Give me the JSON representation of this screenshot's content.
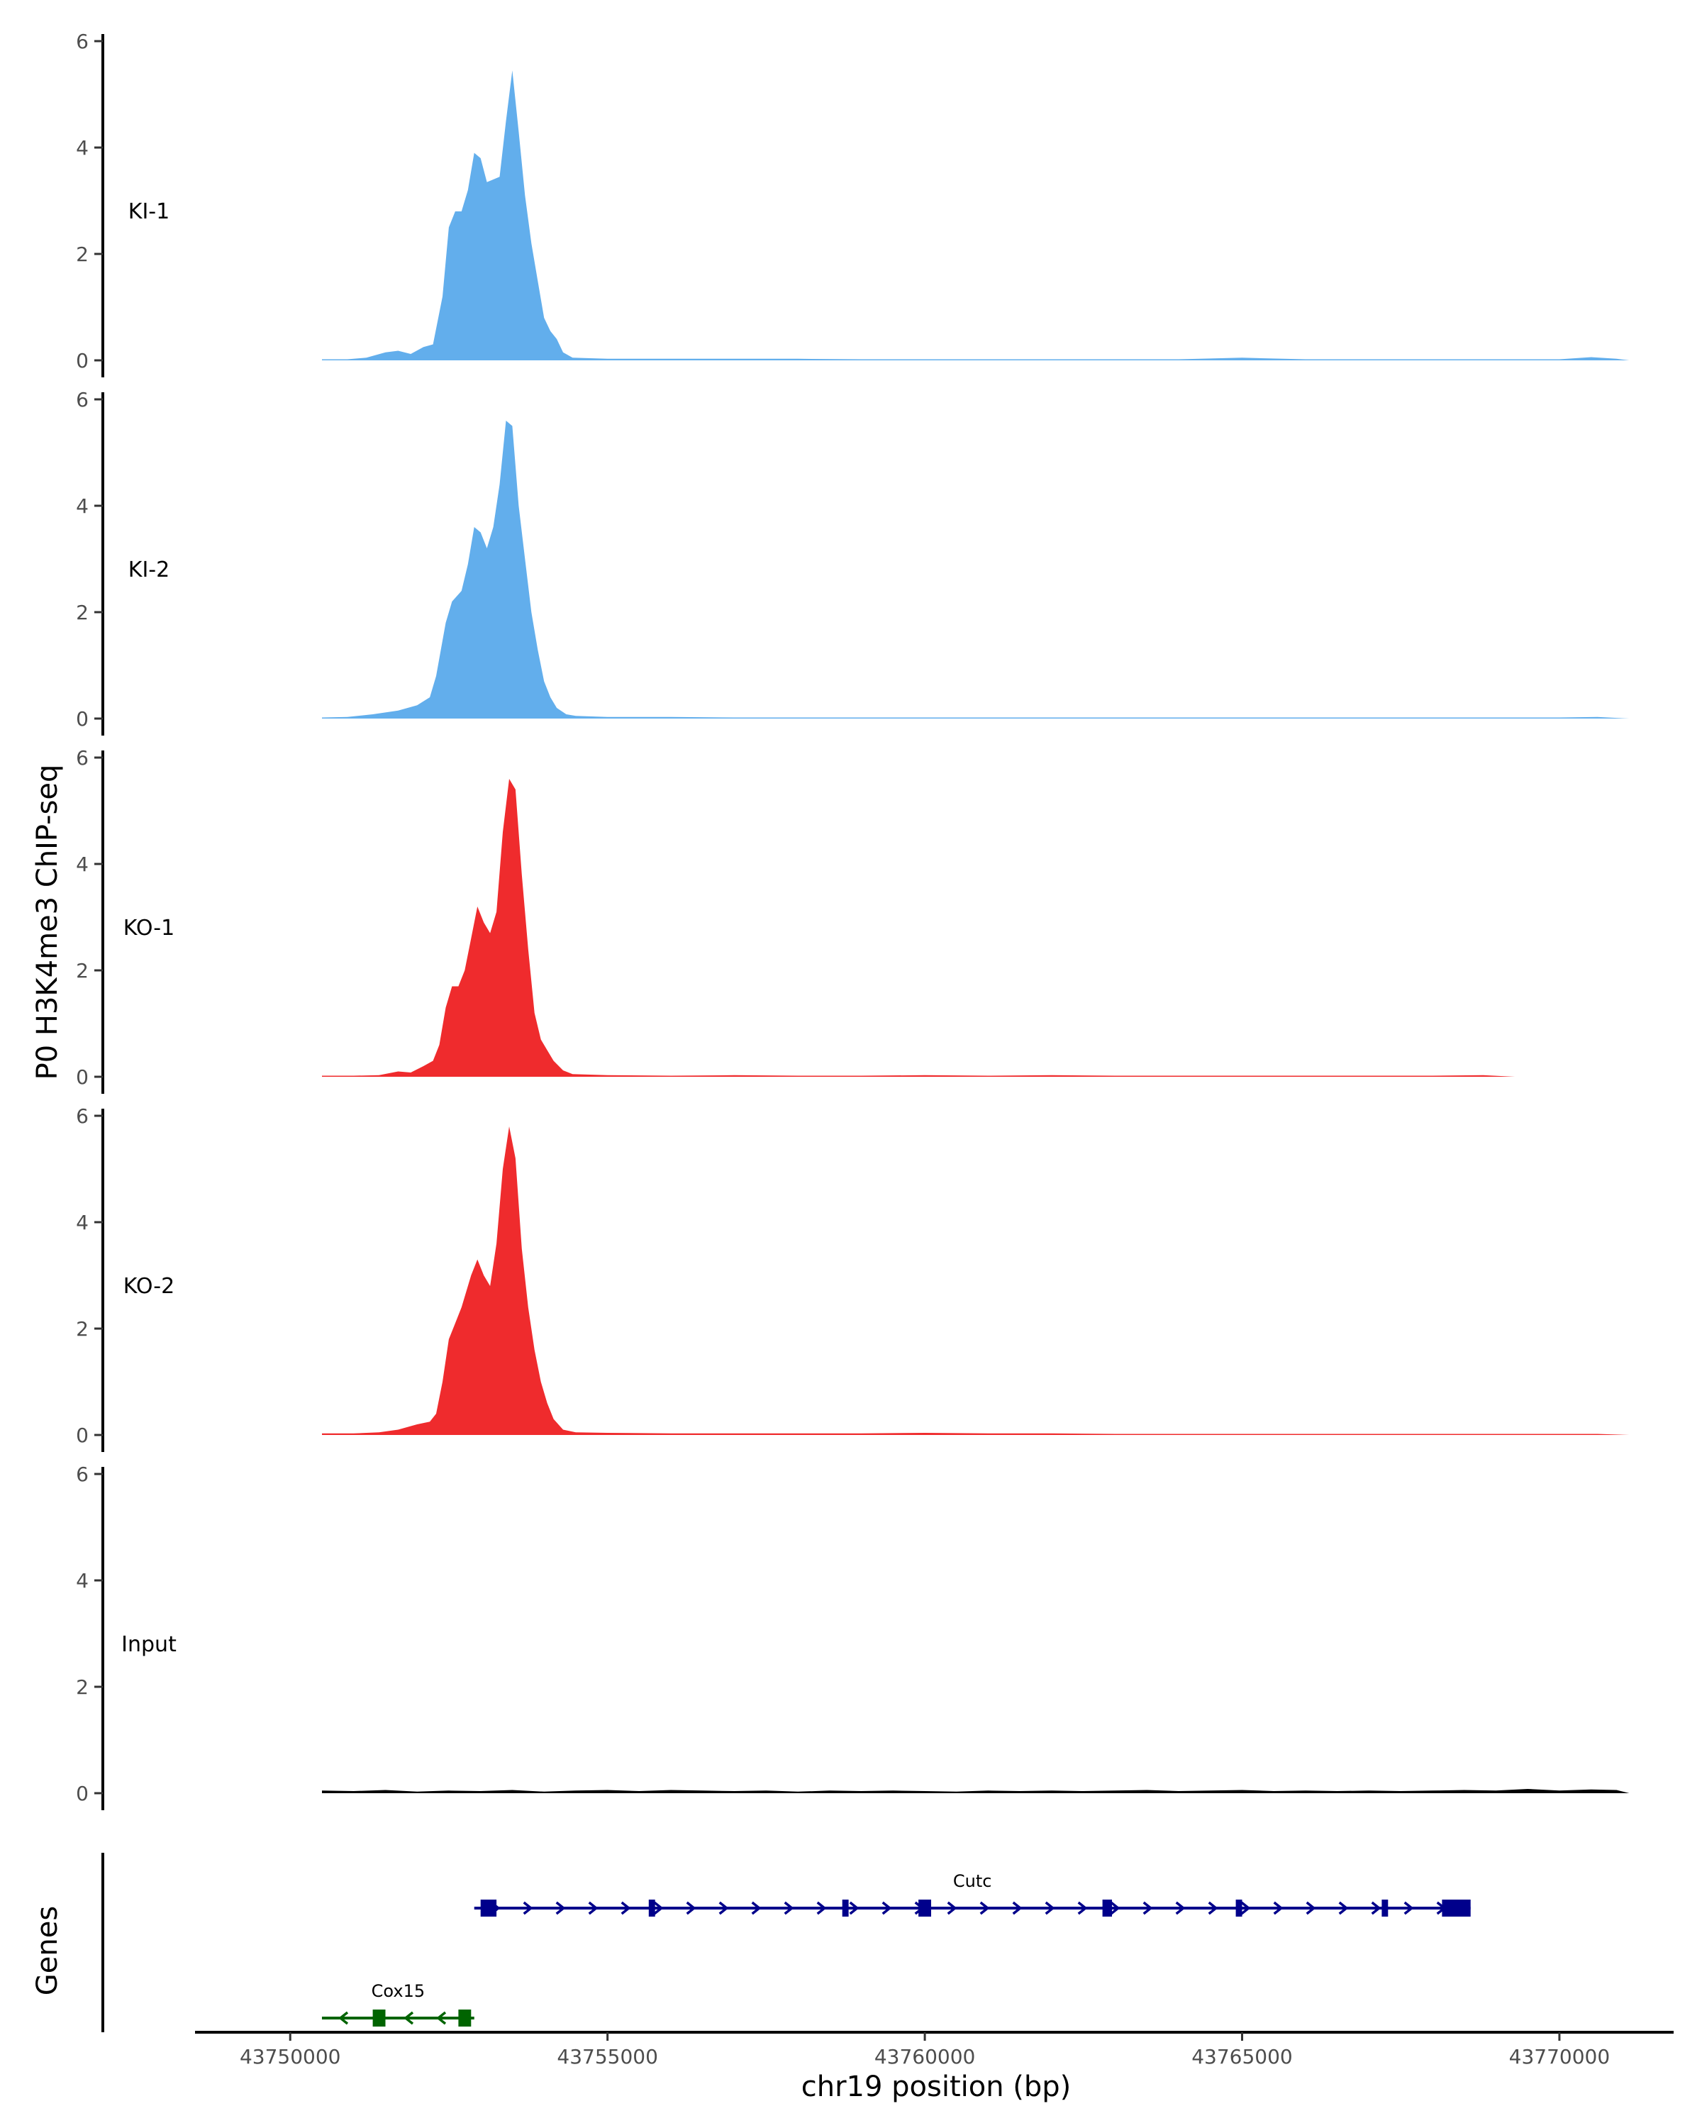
{
  "chart_data": {
    "type": "area",
    "title": "",
    "xlabel": "chr19 position (bp)",
    "ylabel": "P0 H3K4me3 ChIP-seq",
    "genes_axis_label": "Genes",
    "x_range": [
      43750000,
      43771000
    ],
    "xlim": [
      43748500,
      43771800
    ],
    "x_ticks": [
      43750000,
      43755000,
      43760000,
      43765000,
      43770000
    ],
    "x_tick_labels": [
      "43750000",
      "43755000",
      "43760000",
      "43765000",
      "43770000"
    ],
    "ylim": [
      0,
      6
    ],
    "y_ticks": [
      0,
      2,
      4,
      6
    ],
    "y_tick_labels": [
      "0",
      "2",
      "4",
      "6"
    ],
    "grid": false,
    "series": [
      {
        "name": "KI-1",
        "color": "#62aeec",
        "points": [
          [
            43750500,
            0.02
          ],
          [
            43750900,
            0.02
          ],
          [
            43751200,
            0.05
          ],
          [
            43751500,
            0.15
          ],
          [
            43751700,
            0.18
          ],
          [
            43751900,
            0.12
          ],
          [
            43752100,
            0.25
          ],
          [
            43752250,
            0.3
          ],
          [
            43752400,
            1.2
          ],
          [
            43752500,
            2.5
          ],
          [
            43752600,
            2.8
          ],
          [
            43752700,
            2.8
          ],
          [
            43752800,
            3.2
          ],
          [
            43752900,
            3.9
          ],
          [
            43753000,
            3.8
          ],
          [
            43753100,
            3.35
          ],
          [
            43753200,
            3.4
          ],
          [
            43753300,
            3.45
          ],
          [
            43753400,
            4.5
          ],
          [
            43753500,
            5.45
          ],
          [
            43753600,
            4.3
          ],
          [
            43753700,
            3.1
          ],
          [
            43753800,
            2.2
          ],
          [
            43753900,
            1.5
          ],
          [
            43754000,
            0.8
          ],
          [
            43754100,
            0.55
          ],
          [
            43754200,
            0.4
          ],
          [
            43754300,
            0.15
          ],
          [
            43754450,
            0.05
          ],
          [
            43755000,
            0.03
          ],
          [
            43756000,
            0.03
          ],
          [
            43757000,
            0.03
          ],
          [
            43758000,
            0.03
          ],
          [
            43759000,
            0.02
          ],
          [
            43760000,
            0.02
          ],
          [
            43761000,
            0.02
          ],
          [
            43762000,
            0.02
          ],
          [
            43763000,
            0.02
          ],
          [
            43764000,
            0.02
          ],
          [
            43765000,
            0.05
          ],
          [
            43766000,
            0.02
          ],
          [
            43767000,
            0.02
          ],
          [
            43768000,
            0.02
          ],
          [
            43769000,
            0.02
          ],
          [
            43770000,
            0.02
          ],
          [
            43770500,
            0.06
          ],
          [
            43770900,
            0.03
          ],
          [
            43771100,
            0.0
          ]
        ]
      },
      {
        "name": "KI-2",
        "color": "#62aeec",
        "points": [
          [
            43750500,
            0.02
          ],
          [
            43750900,
            0.03
          ],
          [
            43751300,
            0.08
          ],
          [
            43751700,
            0.15
          ],
          [
            43752000,
            0.25
          ],
          [
            43752200,
            0.4
          ],
          [
            43752300,
            0.8
          ],
          [
            43752450,
            1.8
          ],
          [
            43752550,
            2.2
          ],
          [
            43752700,
            2.4
          ],
          [
            43752800,
            2.9
          ],
          [
            43752900,
            3.6
          ],
          [
            43753000,
            3.5
          ],
          [
            43753100,
            3.2
          ],
          [
            43753200,
            3.6
          ],
          [
            43753300,
            4.4
          ],
          [
            43753400,
            5.6
          ],
          [
            43753500,
            5.5
          ],
          [
            43753600,
            4.0
          ],
          [
            43753700,
            3.0
          ],
          [
            43753800,
            2.0
          ],
          [
            43753900,
            1.3
          ],
          [
            43754000,
            0.7
          ],
          [
            43754100,
            0.4
          ],
          [
            43754200,
            0.2
          ],
          [
            43754350,
            0.08
          ],
          [
            43754500,
            0.05
          ],
          [
            43755000,
            0.03
          ],
          [
            43756000,
            0.03
          ],
          [
            43757000,
            0.02
          ],
          [
            43758000,
            0.02
          ],
          [
            43759000,
            0.02
          ],
          [
            43760000,
            0.02
          ],
          [
            43761000,
            0.02
          ],
          [
            43762000,
            0.02
          ],
          [
            43763000,
            0.02
          ],
          [
            43764000,
            0.02
          ],
          [
            43765000,
            0.02
          ],
          [
            43766000,
            0.02
          ],
          [
            43767000,
            0.02
          ],
          [
            43768000,
            0.02
          ],
          [
            43769000,
            0.02
          ],
          [
            43770000,
            0.02
          ],
          [
            43770600,
            0.03
          ],
          [
            43771100,
            0.0
          ]
        ]
      },
      {
        "name": "KO-1",
        "color": "#ef2b2d",
        "points": [
          [
            43750500,
            0.02
          ],
          [
            43751000,
            0.02
          ],
          [
            43751400,
            0.03
          ],
          [
            43751700,
            0.1
          ],
          [
            43751900,
            0.08
          ],
          [
            43752100,
            0.2
          ],
          [
            43752250,
            0.3
          ],
          [
            43752350,
            0.6
          ],
          [
            43752450,
            1.3
          ],
          [
            43752550,
            1.7
          ],
          [
            43752650,
            1.7
          ],
          [
            43752750,
            2.0
          ],
          [
            43752850,
            2.6
          ],
          [
            43752950,
            3.2
          ],
          [
            43753050,
            2.9
          ],
          [
            43753150,
            2.7
          ],
          [
            43753250,
            3.1
          ],
          [
            43753350,
            4.6
          ],
          [
            43753450,
            5.6
          ],
          [
            43753550,
            5.4
          ],
          [
            43753650,
            3.8
          ],
          [
            43753750,
            2.4
          ],
          [
            43753850,
            1.2
          ],
          [
            43753950,
            0.7
          ],
          [
            43754050,
            0.5
          ],
          [
            43754150,
            0.3
          ],
          [
            43754300,
            0.12
          ],
          [
            43754450,
            0.05
          ],
          [
            43755000,
            0.03
          ],
          [
            43756000,
            0.02
          ],
          [
            43757000,
            0.03
          ],
          [
            43758000,
            0.02
          ],
          [
            43759000,
            0.02
          ],
          [
            43760000,
            0.03
          ],
          [
            43761000,
            0.02
          ],
          [
            43762000,
            0.03
          ],
          [
            43763000,
            0.02
          ],
          [
            43764000,
            0.02
          ],
          [
            43765000,
            0.02
          ],
          [
            43766000,
            0.02
          ],
          [
            43767000,
            0.02
          ],
          [
            43768000,
            0.02
          ],
          [
            43768800,
            0.03
          ],
          [
            43769300,
            0.0
          ]
        ]
      },
      {
        "name": "KO-2",
        "color": "#ef2b2d",
        "points": [
          [
            43750500,
            0.03
          ],
          [
            43751000,
            0.03
          ],
          [
            43751400,
            0.05
          ],
          [
            43751700,
            0.1
          ],
          [
            43752000,
            0.2
          ],
          [
            43752200,
            0.25
          ],
          [
            43752300,
            0.4
          ],
          [
            43752400,
            1.0
          ],
          [
            43752500,
            1.8
          ],
          [
            43752600,
            2.1
          ],
          [
            43752700,
            2.4
          ],
          [
            43752850,
            3.0
          ],
          [
            43752950,
            3.3
          ],
          [
            43753050,
            3.0
          ],
          [
            43753150,
            2.8
          ],
          [
            43753250,
            3.6
          ],
          [
            43753350,
            5.0
          ],
          [
            43753450,
            5.8
          ],
          [
            43753550,
            5.2
          ],
          [
            43753650,
            3.5
          ],
          [
            43753750,
            2.4
          ],
          [
            43753850,
            1.6
          ],
          [
            43753950,
            1.0
          ],
          [
            43754050,
            0.6
          ],
          [
            43754150,
            0.3
          ],
          [
            43754300,
            0.1
          ],
          [
            43754500,
            0.05
          ],
          [
            43755000,
            0.04
          ],
          [
            43756000,
            0.03
          ],
          [
            43757000,
            0.03
          ],
          [
            43758000,
            0.03
          ],
          [
            43759000,
            0.03
          ],
          [
            43760000,
            0.04
          ],
          [
            43761000,
            0.03
          ],
          [
            43762000,
            0.03
          ],
          [
            43763000,
            0.02
          ],
          [
            43764000,
            0.02
          ],
          [
            43765000,
            0.02
          ],
          [
            43766000,
            0.02
          ],
          [
            43767000,
            0.02
          ],
          [
            43768000,
            0.02
          ],
          [
            43769000,
            0.02
          ],
          [
            43770000,
            0.02
          ],
          [
            43770600,
            0.02
          ],
          [
            43771100,
            0.0
          ]
        ]
      },
      {
        "name": "Input",
        "color": "#000000",
        "points": [
          [
            43750500,
            0.05
          ],
          [
            43751000,
            0.04
          ],
          [
            43751500,
            0.06
          ],
          [
            43752000,
            0.03
          ],
          [
            43752500,
            0.05
          ],
          [
            43753000,
            0.04
          ],
          [
            43753500,
            0.06
          ],
          [
            43754000,
            0.03
          ],
          [
            43754500,
            0.05
          ],
          [
            43755000,
            0.06
          ],
          [
            43755500,
            0.04
          ],
          [
            43756000,
            0.06
          ],
          [
            43756500,
            0.05
          ],
          [
            43757000,
            0.04
          ],
          [
            43757500,
            0.05
          ],
          [
            43758000,
            0.03
          ],
          [
            43758500,
            0.05
          ],
          [
            43759000,
            0.04
          ],
          [
            43759500,
            0.05
          ],
          [
            43760000,
            0.04
          ],
          [
            43760500,
            0.03
          ],
          [
            43761000,
            0.05
          ],
          [
            43761500,
            0.04
          ],
          [
            43762000,
            0.05
          ],
          [
            43762500,
            0.04
          ],
          [
            43763000,
            0.05
          ],
          [
            43763500,
            0.06
          ],
          [
            43764000,
            0.04
          ],
          [
            43764500,
            0.05
          ],
          [
            43765000,
            0.06
          ],
          [
            43765500,
            0.04
          ],
          [
            43766000,
            0.05
          ],
          [
            43766500,
            0.04
          ],
          [
            43767000,
            0.05
          ],
          [
            43767500,
            0.04
          ],
          [
            43768000,
            0.05
          ],
          [
            43768500,
            0.06
          ],
          [
            43769000,
            0.05
          ],
          [
            43769500,
            0.08
          ],
          [
            43770000,
            0.05
          ],
          [
            43770500,
            0.07
          ],
          [
            43770900,
            0.06
          ],
          [
            43771100,
            0.0
          ]
        ]
      }
    ],
    "genes": [
      {
        "name": "Cutc",
        "strand": "+",
        "color": "#00008b",
        "start": 43752900,
        "end": 43768600,
        "exons": [
          [
            43753000,
            43753250
          ],
          [
            43755650,
            43755750
          ],
          [
            43758700,
            43758800
          ],
          [
            43759900,
            43760100
          ],
          [
            43762800,
            43762950
          ],
          [
            43764900,
            43765000
          ],
          [
            43767200,
            43767300
          ],
          [
            43768150,
            43768600
          ]
        ]
      },
      {
        "name": "Cox15",
        "strand": "-",
        "color": "#006400",
        "start": 43750500,
        "end": 43752900,
        "exons": [
          [
            43751300,
            43751500
          ],
          [
            43752650,
            43752850
          ]
        ]
      }
    ]
  }
}
